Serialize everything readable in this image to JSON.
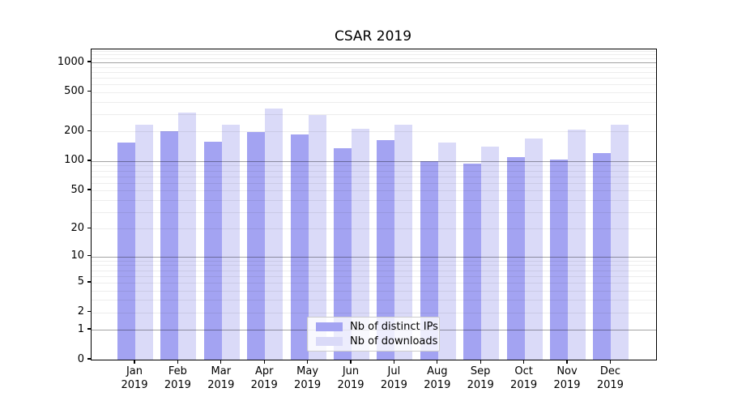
{
  "title": "CSAR 2019",
  "chart_data": {
    "type": "bar",
    "title": "CSAR 2019",
    "categories": [
      "Jan",
      "Feb",
      "Mar",
      "Apr",
      "May",
      "Jun",
      "Jul",
      "Aug",
      "Sep",
      "Oct",
      "Nov",
      "Dec"
    ],
    "category_year": "2019",
    "series": [
      {
        "name": "Nb of distinct IPs",
        "color": "#a3a3f2",
        "values": [
          154,
          200,
          156,
          198,
          188,
          136,
          164,
          100,
          94,
          110,
          104,
          120
        ]
      },
      {
        "name": "Nb of downloads",
        "color": "#dadaf8",
        "values": [
          235,
          308,
          234,
          344,
          293,
          212,
          235,
          154,
          140,
          170,
          207,
          234
        ]
      }
    ],
    "xlabel": "",
    "ylabel": "",
    "yscale": "log1p",
    "yticks": [
      0,
      1,
      2,
      5,
      10,
      20,
      50,
      100,
      200,
      500,
      1000
    ],
    "ylim": [
      0,
      1352
    ],
    "grid": true,
    "legend_position": "lower center"
  },
  "colors": {
    "grid_major": "rgba(0,0,0,0.36)",
    "grid_minor": "rgba(0,0,0,0.07)",
    "spine": "#000000"
  }
}
